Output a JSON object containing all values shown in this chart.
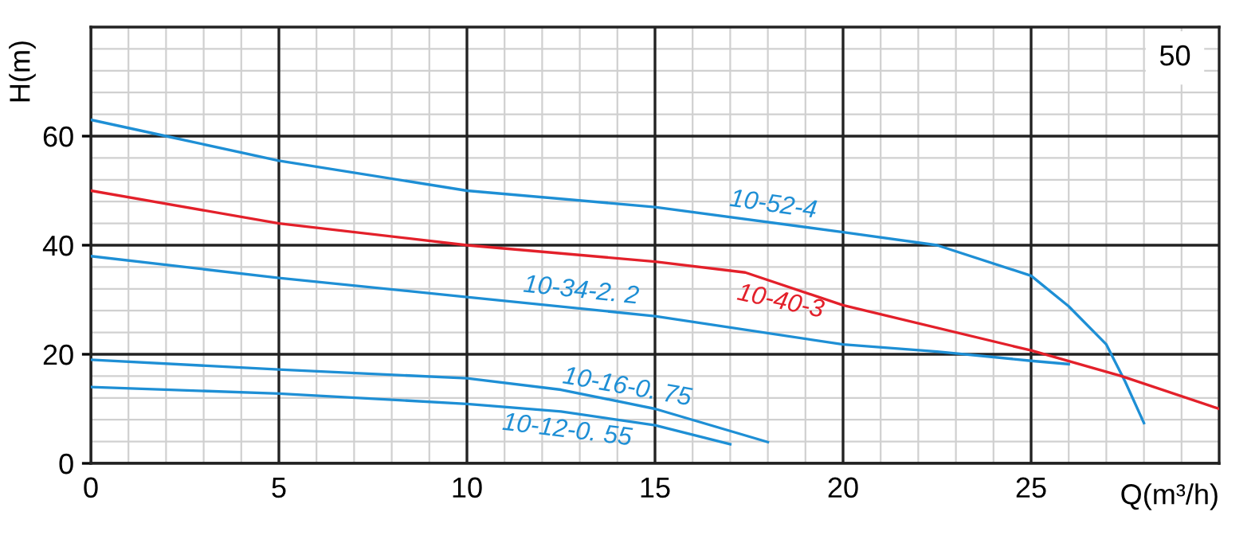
{
  "chart_data": {
    "type": "line",
    "xlabel": "Q(m³/h)",
    "ylabel": "H(m)",
    "xlim": [
      0,
      30
    ],
    "ylim": [
      0,
      80
    ],
    "xticks": [
      0,
      5,
      10,
      15,
      20,
      25
    ],
    "yticks": [
      0,
      20,
      40,
      60
    ],
    "grid": true,
    "legend": false,
    "marker": "none",
    "line_style": "solid",
    "annotations": [
      "50"
    ],
    "series": [
      {
        "name": "10-52-4",
        "color": "#1e8fd5",
        "x": [
          0,
          2,
          5,
          10,
          15,
          20,
          22.5,
          25,
          26,
          27,
          27.5,
          28
        ],
        "values": [
          63,
          60,
          55.5,
          50,
          47,
          42.4,
          40,
          34.4,
          28.8,
          21.8,
          15,
          7.4
        ]
      },
      {
        "name": "10-40-3",
        "color": "#e3202a",
        "x": [
          0,
          5,
          10,
          15,
          17.4,
          20,
          25,
          27.4,
          30
        ],
        "values": [
          50,
          44,
          40,
          37,
          35,
          29,
          20.7,
          16,
          10
        ]
      },
      {
        "name": "10-34-2. 2",
        "color": "#1e8fd5",
        "x": [
          0,
          5,
          10,
          15,
          20,
          22.5,
          25,
          26
        ],
        "values": [
          38,
          34,
          30.5,
          27,
          21.8,
          20.5,
          18.8,
          18.2
        ]
      },
      {
        "name": "10-16-0. 75",
        "color": "#1e8fd5",
        "x": [
          0,
          5,
          10,
          12.5,
          15,
          18
        ],
        "values": [
          19,
          17.2,
          15.6,
          13.5,
          10,
          3.9
        ]
      },
      {
        "name": "10-12-0. 55",
        "color": "#1e8fd5",
        "x": [
          0,
          5,
          10,
          12.5,
          15,
          17
        ],
        "values": [
          14,
          12.8,
          10.9,
          9.5,
          7,
          3.5
        ]
      }
    ]
  }
}
